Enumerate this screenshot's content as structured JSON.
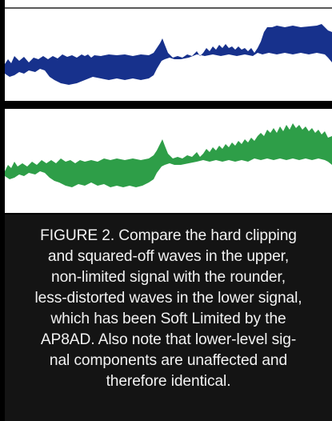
{
  "figure": {
    "caption_lines": [
      "FIGURE 2. Compare the hard clipping",
      "and squared-off waves in the upper,",
      "non-limited signal with the rounder,",
      "less-distorted waves in the lower signal,",
      "which has been Soft Limited by the",
      "AP8AD. Also note that lower-level sig-",
      "nal components are unaffected and",
      "therefore identical."
    ],
    "colors": {
      "upper_wave": "#17318c",
      "lower_wave": "#2e9e48",
      "background": "#000000",
      "panel": "#ffffff",
      "caption_bg": "#141414",
      "caption_text": "#f2f2f2"
    }
  }
}
